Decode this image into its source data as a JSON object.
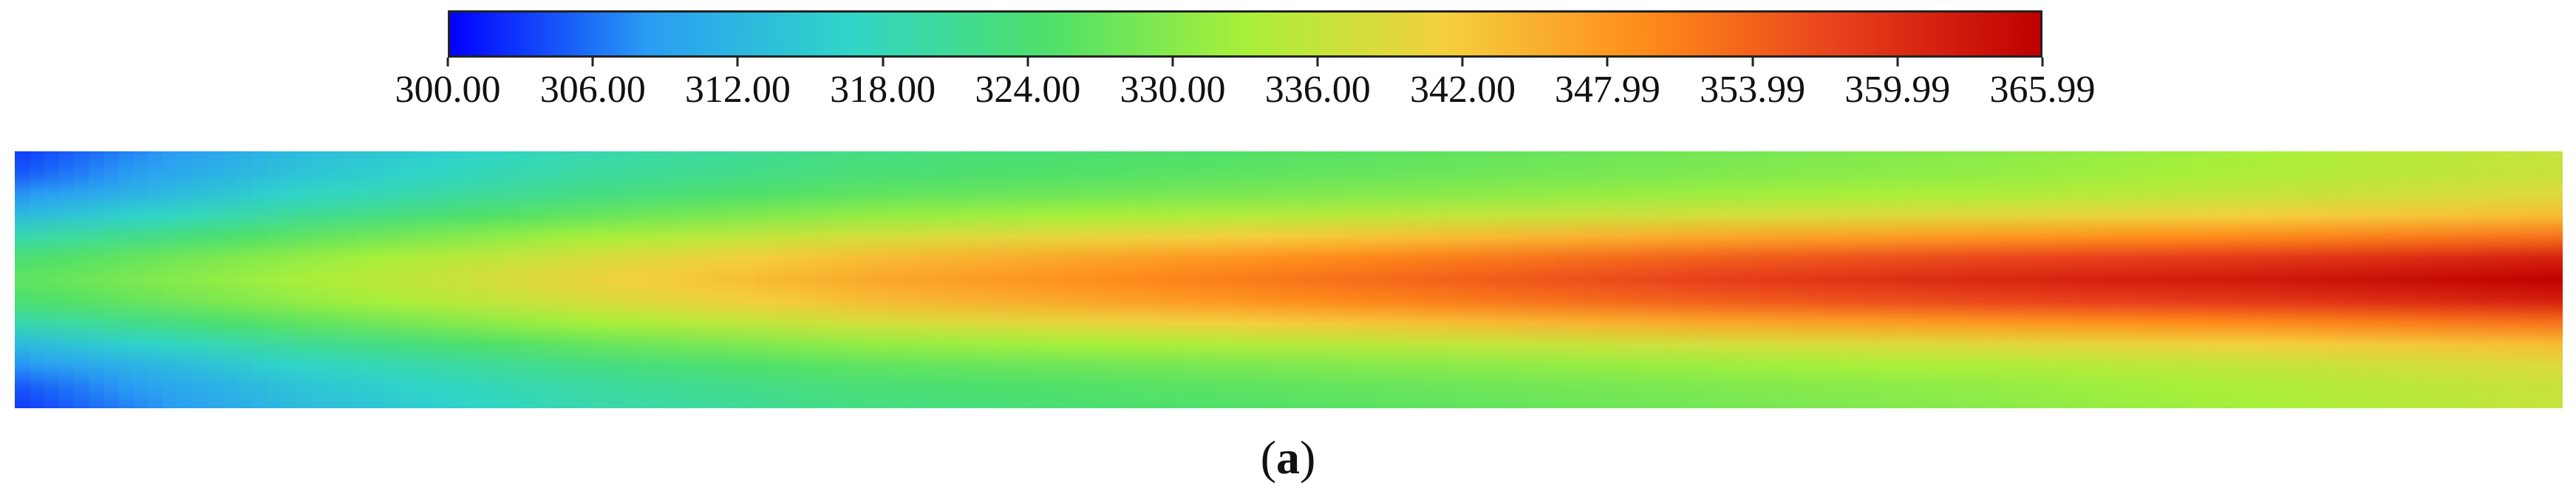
{
  "chart_data": {
    "type": "heatmap",
    "colormap": "jet",
    "colorbar": {
      "min": 300.0,
      "max": 365.99,
      "tick_labels": [
        "300.00",
        "306.00",
        "312.00",
        "318.00",
        "324.00",
        "330.00",
        "336.00",
        "342.00",
        "347.99",
        "353.99",
        "359.99",
        "365.99"
      ],
      "tick_values": [
        300.0,
        306.0,
        312.0,
        318.0,
        324.0,
        330.0,
        336.0,
        342.0,
        347.99,
        353.99,
        359.99,
        365.99
      ],
      "colors": [
        "#0000ff",
        "#2a9df4",
        "#30d5c8",
        "#4ee06a",
        "#a8f03a",
        "#f4d03f",
        "#ff8c1a",
        "#e8401c",
        "#c00000"
      ]
    },
    "field": {
      "description_note": "",
      "centerline_values": [
        326,
        333,
        340,
        346,
        350,
        354,
        358,
        361,
        363,
        365.99
      ],
      "edge_values": [
        302,
        312,
        318,
        322,
        324,
        326,
        328,
        330,
        333,
        336
      ]
    }
  },
  "panel_label": {
    "open": "(",
    "letter": "a",
    "close": ")"
  }
}
